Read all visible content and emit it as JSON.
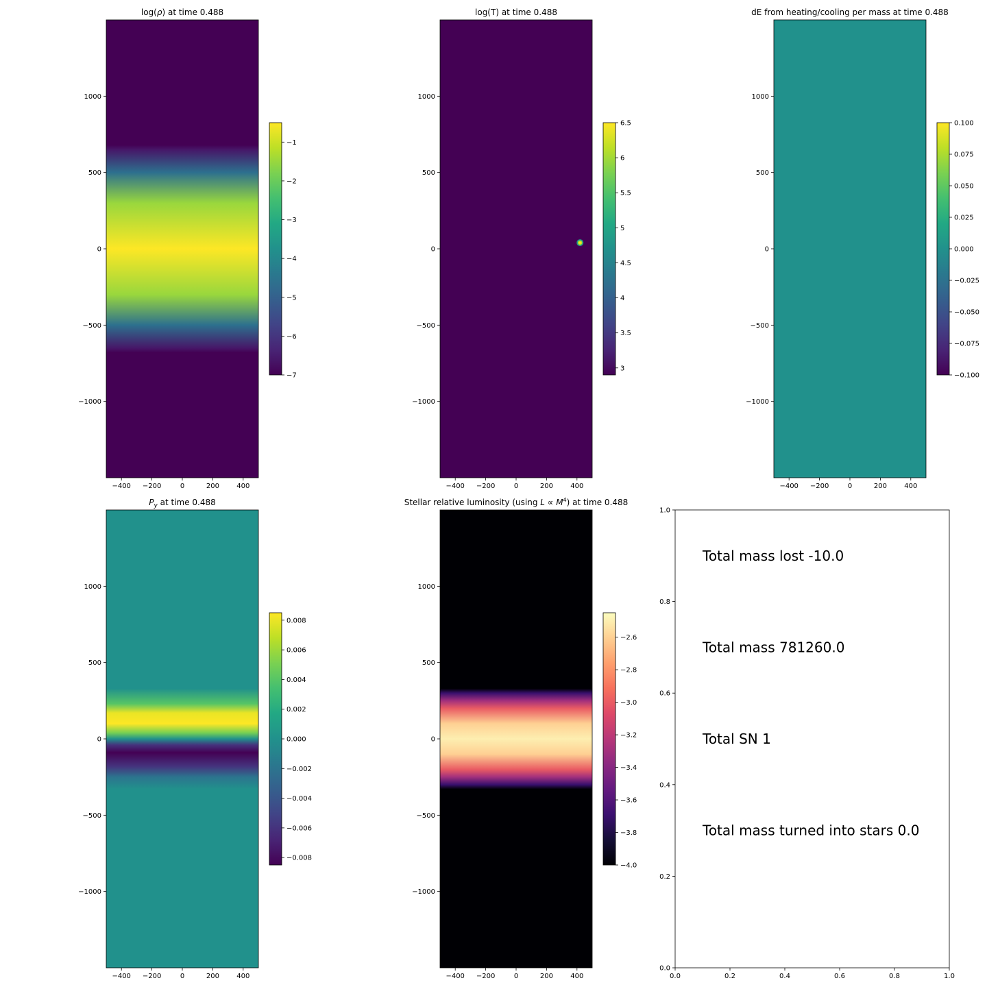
{
  "figure": {
    "background": "#ffffff"
  },
  "chart_data": [
    {
      "id": "rho",
      "type": "heatmap",
      "title": "log(ρ) at time 0.488",
      "colormap": "viridis",
      "xlim": [
        -500,
        500
      ],
      "ylim": [
        -1500,
        1500
      ],
      "xticks": [
        -400,
        -200,
        0,
        200,
        400
      ],
      "yticks": [
        -1000,
        -500,
        0,
        500,
        1000
      ],
      "field": {
        "kind": "y-profile",
        "y": [
          -1500,
          -680,
          -650,
          -500,
          -300,
          0,
          300,
          500,
          650,
          680,
          1500
        ],
        "v": [
          -7.0,
          -7.0,
          -6.6,
          -4.6,
          -1.5,
          -0.5,
          -1.5,
          -4.6,
          -6.6,
          -7.0,
          -7.0
        ]
      },
      "colorbar": {
        "vmin": -7,
        "vmax": -0.5,
        "ticks": [
          -7,
          -6,
          -5,
          -4,
          -3,
          -2,
          -1
        ]
      }
    },
    {
      "id": "temp",
      "type": "heatmap",
      "title": "log(T) at time 0.488",
      "colormap": "viridis",
      "xlim": [
        -500,
        500
      ],
      "ylim": [
        -1500,
        1500
      ],
      "xticks": [
        -400,
        -200,
        0,
        200,
        400
      ],
      "yticks": [
        -1000,
        -500,
        0,
        500,
        1000
      ],
      "field": {
        "kind": "constant",
        "v": 2.9
      },
      "hotspot": {
        "x": 420,
        "y": 40,
        "v": 6.5
      },
      "colorbar": {
        "vmin": 2.9,
        "vmax": 6.5,
        "ticks": [
          3.0,
          3.5,
          4.0,
          4.5,
          5.0,
          5.5,
          6.0,
          6.5
        ]
      }
    },
    {
      "id": "de",
      "type": "heatmap",
      "title": "dE from heating/cooling per mass at time 0.488",
      "colormap": "viridis",
      "xlim": [
        -500,
        500
      ],
      "ylim": [
        -1500,
        1500
      ],
      "xticks": [
        -400,
        -200,
        0,
        200,
        400
      ],
      "yticks": [
        -1000,
        -500,
        0,
        500,
        1000
      ],
      "field": {
        "kind": "constant",
        "v": 0.0
      },
      "colorbar": {
        "vmin": -0.1,
        "vmax": 0.1,
        "ticks": [
          -0.1,
          -0.075,
          -0.05,
          -0.025,
          0.0,
          0.025,
          0.05,
          0.075,
          0.1
        ],
        "tick_labels": [
          "−0.100",
          "−0.075",
          "−0.050",
          "−0.025",
          "0.000",
          "0.025",
          "0.050",
          "0.075",
          "0.100"
        ]
      }
    },
    {
      "id": "py",
      "type": "heatmap",
      "title": "Py at time 0.488",
      "title_parts": {
        "main": "P",
        "sub": "y",
        "rest": " at time 0.488"
      },
      "colormap": "viridis",
      "xlim": [
        -500,
        500
      ],
      "ylim": [
        -1500,
        1500
      ],
      "xticks": [
        -400,
        -200,
        0,
        200,
        400
      ],
      "yticks": [
        -1000,
        -500,
        0,
        500,
        1000
      ],
      "field": {
        "kind": "y-profile",
        "y": [
          -1500,
          -330,
          -250,
          -180,
          -90,
          -40,
          0,
          40,
          100,
          170,
          230,
          330,
          1500
        ],
        "v": [
          0.0,
          0.0,
          -0.002,
          -0.006,
          -0.0085,
          -0.006,
          0.0,
          0.005,
          0.0085,
          0.008,
          0.004,
          0.0,
          0.0
        ]
      },
      "colorbar": {
        "vmin": -0.0085,
        "vmax": 0.0085,
        "ticks": [
          -0.008,
          -0.006,
          -0.004,
          -0.002,
          0.0,
          0.002,
          0.004,
          0.006,
          0.008
        ],
        "tick_labels": [
          "−0.008",
          "−0.006",
          "−0.004",
          "−0.002",
          "0.000",
          "0.002",
          "0.004",
          "0.006",
          "0.008"
        ]
      }
    },
    {
      "id": "lum",
      "type": "heatmap",
      "title": "Stellar relative luminosity (using L ∝ M4) at time 0.488",
      "title_parts": {
        "pre": "Stellar relative luminosity (using ",
        "L": "L",
        "prop": " ∝ ",
        "M": "M",
        "sup": "4",
        "rest": ") at time 0.488"
      },
      "colormap": "magma",
      "xlim": [
        -500,
        500
      ],
      "ylim": [
        -1500,
        1500
      ],
      "xticks": [
        -400,
        -200,
        0,
        200,
        400
      ],
      "yticks": [
        -1000,
        -500,
        0,
        500,
        1000
      ],
      "field": {
        "kind": "y-profile",
        "y": [
          -1500,
          -330,
          -300,
          -250,
          -200,
          -100,
          0,
          100,
          200,
          250,
          300,
          330,
          1500
        ],
        "v": [
          -4.0,
          -4.0,
          -3.7,
          -3.3,
          -3.0,
          -2.6,
          -2.5,
          -2.6,
          -3.0,
          -3.3,
          -3.7,
          -4.0,
          -4.0
        ]
      },
      "colorbar": {
        "vmin": -4.0,
        "vmax": -2.45,
        "ticks": [
          -4.0,
          -3.8,
          -3.6,
          -3.4,
          -3.2,
          -3.0,
          -2.8,
          -2.6
        ],
        "tick_labels": [
          "−4.0",
          "−3.8",
          "−3.6",
          "−3.4",
          "−3.2",
          "−3.0",
          "−2.8",
          "−2.6"
        ]
      }
    }
  ],
  "text_panel": {
    "xlim": [
      0,
      1
    ],
    "ylim": [
      0,
      1
    ],
    "xticks": [
      "0.0",
      "0.2",
      "0.4",
      "0.6",
      "0.8",
      "1.0"
    ],
    "yticks": [
      "0.0",
      "0.2",
      "0.4",
      "0.6",
      "0.8",
      "1.0"
    ],
    "lines": [
      {
        "text": "Total mass lost -10.0",
        "x": 0.1,
        "y": 0.9
      },
      {
        "text": "Total mass 781260.0",
        "x": 0.1,
        "y": 0.7
      },
      {
        "text": "Total SN 1",
        "x": 0.1,
        "y": 0.5
      },
      {
        "text": "Total mass turned into stars 0.0",
        "x": 0.1,
        "y": 0.3
      }
    ]
  }
}
